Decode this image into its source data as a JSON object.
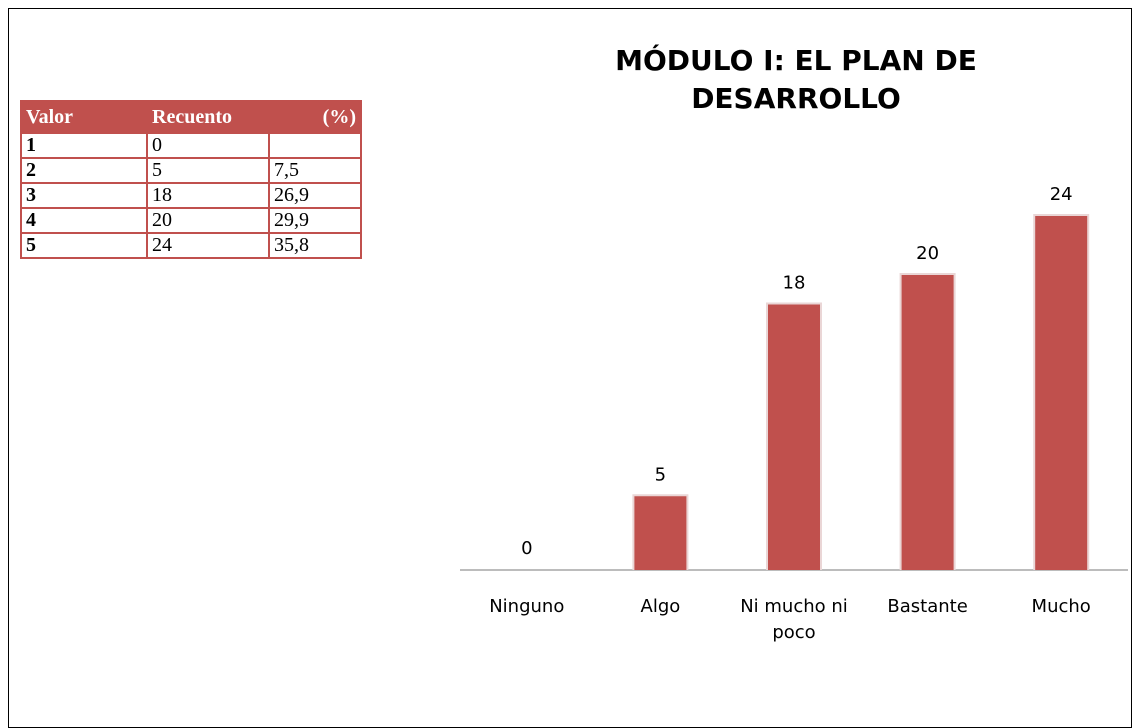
{
  "table": {
    "header": [
      "Valor",
      "Recuento",
      "(%)"
    ],
    "rows": [
      [
        "1",
        "0"
      ],
      [
        "2",
        "5",
        "7,5"
      ],
      [
        "3",
        "18",
        "26,9"
      ],
      [
        "4",
        "20",
        "29,9"
      ],
      [
        "5",
        "24",
        "35,8"
      ]
    ]
  },
  "chart_data": {
    "type": "bar",
    "title": "MÓDULO I: EL PLAN DE DESARROLLO",
    "categories": [
      "Ninguno",
      "Algo",
      "Ni mucho ni poco",
      "Bastante",
      "Mucho"
    ],
    "values": [
      0,
      5,
      18,
      20,
      24
    ],
    "color": "#c0504d"
  }
}
